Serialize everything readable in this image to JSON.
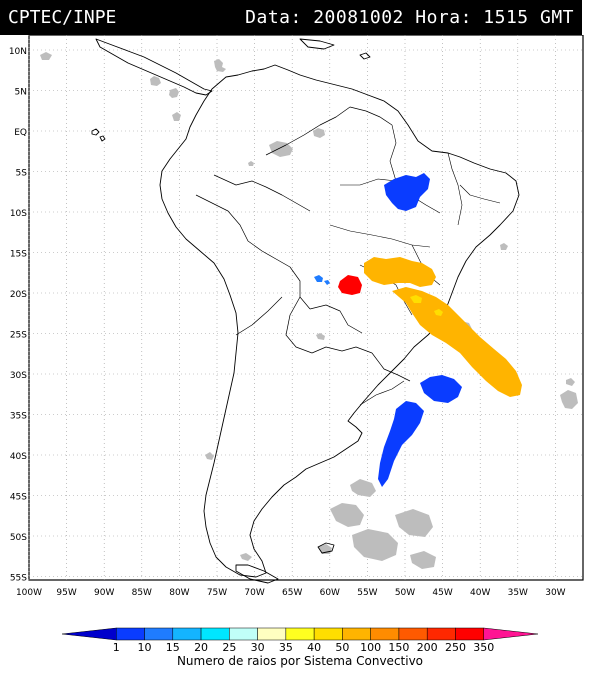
{
  "header": {
    "source": "CPTEC/INPE",
    "date_label": "Data:",
    "date_value": "20081002",
    "hour_label": "Hora:",
    "hour_value": "1515",
    "timezone": "GMT"
  },
  "map": {
    "lat_ticks": [
      "10N",
      "5N",
      "EQ",
      "5S",
      "10S",
      "15S",
      "20S",
      "25S",
      "30S",
      "35S",
      "40S",
      "45S",
      "50S",
      "55S"
    ],
    "lon_ticks": [
      "100W",
      "95W",
      "90W",
      "85W",
      "80W",
      "75W",
      "70W",
      "65W",
      "60W",
      "55W",
      "50W",
      "45W",
      "40W",
      "35W",
      "30W"
    ],
    "colors": {
      "background": "#ffffff",
      "coast": "#000000",
      "grid": "#999999",
      "cloud": "#bdbdbd"
    }
  },
  "legend": {
    "title": "Numero de raios por Sistema Convectivo",
    "labels": [
      "1",
      "10",
      "15",
      "20",
      "25",
      "30",
      "35",
      "40",
      "50",
      "100",
      "150",
      "200",
      "250",
      "350"
    ],
    "colors": [
      "#0000cc",
      "#0a3cff",
      "#1f7cff",
      "#14b4ff",
      "#00e6ff",
      "#c0fff8",
      "#ffffc0",
      "#ffff20",
      "#ffde00",
      "#ffb400",
      "#ff8c00",
      "#ff5a00",
      "#ff2800",
      "#ff0000",
      "#ff1493"
    ]
  }
}
